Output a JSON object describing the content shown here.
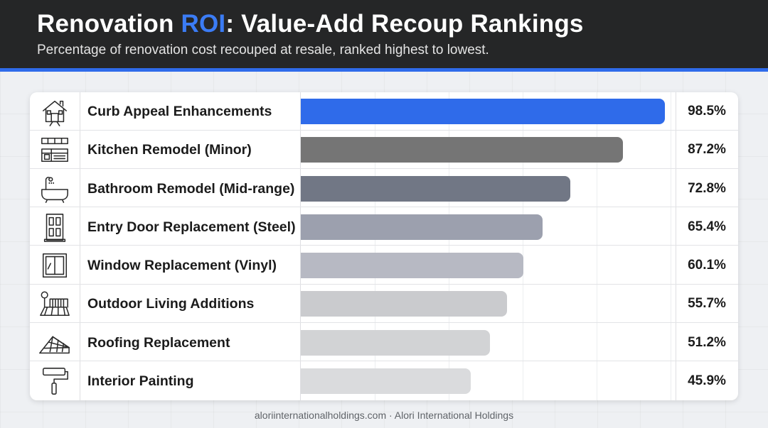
{
  "header": {
    "title_prefix": "Renovation ",
    "title_accent": "ROI",
    "title_suffix": ": Value-Add Recoup Rankings",
    "subtitle": "Percentage of renovation cost recouped at resale, ranked highest to lowest."
  },
  "colors": {
    "header_bg": "#252627",
    "accent": "#2f6bea",
    "bar_colors": [
      "#2f6bea",
      "#757575",
      "#717785",
      "#9ca0ae",
      "#b7b9c3",
      "#cacbce",
      "#d2d3d5",
      "#dadbdd"
    ]
  },
  "chart_data": {
    "type": "bar",
    "orientation": "horizontal",
    "title": "Renovation ROI: Value-Add Recoup Rankings",
    "subtitle": "Percentage of renovation cost recouped at resale, ranked highest to lowest.",
    "categories": [
      "Curb Appeal Enhancements",
      "Kitchen Remodel (Minor)",
      "Bathroom Remodel (Mid-range)",
      "Entry Door Replacement (Steel)",
      "Window Replacement (Vinyl)",
      "Outdoor Living Additions",
      "Roofing Replacement",
      "Interior Painting"
    ],
    "values": [
      98.5,
      87.2,
      72.8,
      65.4,
      60.1,
      55.7,
      51.2,
      45.9
    ],
    "value_labels": [
      "98.5%",
      "87.2%",
      "72.8%",
      "65.4%",
      "60.1%",
      "55.7%",
      "51.2%",
      "45.9%"
    ],
    "icons": [
      "house-icon",
      "kitchen-icon",
      "bathtub-icon",
      "door-icon",
      "window-icon",
      "deck-icon",
      "roof-icon",
      "paint-roller-icon"
    ],
    "unit": "%",
    "xlim": [
      0,
      100
    ],
    "grid": true,
    "legend": "none"
  },
  "footer": {
    "source": "aloriinternationalholdings.com · Alori International Holdings"
  }
}
